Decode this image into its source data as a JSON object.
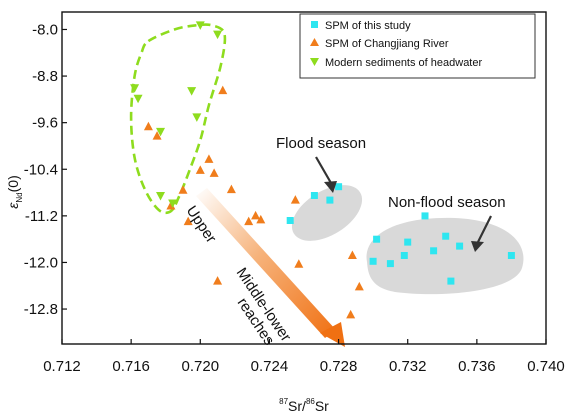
{
  "chart_data": {
    "type": "scatter",
    "xlim": [
      0.712,
      0.74
    ],
    "ylim": [
      -13.4,
      -7.7
    ],
    "x_ticks": [
      0.712,
      0.716,
      0.72,
      0.724,
      0.728,
      0.732,
      0.736,
      0.74
    ],
    "y_ticks": [
      -8.0,
      -8.8,
      -9.6,
      -10.4,
      -11.2,
      -12.0,
      -12.8
    ],
    "x_tick_labels": [
      "0.712",
      "0.716",
      "0.720",
      "0.724",
      "0.728",
      "0.732",
      "0.736",
      "0.740"
    ],
    "y_tick_labels": [
      "-8.0",
      "-8.8",
      "-9.6",
      "-10.4",
      "-11.2",
      "-12.0",
      "-12.8"
    ],
    "xlabel": {
      "sup1": "87",
      "base1": "Sr/",
      "sup2": "86",
      "base2": "Sr"
    },
    "ylabel": {
      "sym": "ε",
      "sub": "Nd",
      "rest": "(0)"
    },
    "legend_position": "top-right",
    "series": [
      {
        "name": "SPM of this study",
        "marker": "square",
        "color": "#2EE6F0",
        "points": [
          [
            0.7252,
            -11.28
          ],
          [
            0.7266,
            -10.85
          ],
          [
            0.7275,
            -10.93
          ],
          [
            0.728,
            -10.7
          ],
          [
            0.7302,
            -11.6
          ],
          [
            0.731,
            -12.02
          ],
          [
            0.7318,
            -11.88
          ],
          [
            0.732,
            -11.65
          ],
          [
            0.733,
            -11.2
          ],
          [
            0.7335,
            -11.8
          ],
          [
            0.7342,
            -11.55
          ],
          [
            0.7345,
            -12.32
          ],
          [
            0.735,
            -11.72
          ],
          [
            0.738,
            -11.88
          ],
          [
            0.73,
            -11.98
          ]
        ]
      },
      {
        "name": "SPM of Changjiang River",
        "marker": "triangle-up",
        "color": "#F07D1C",
        "points": [
          [
            0.717,
            -9.67
          ],
          [
            0.7175,
            -9.83
          ],
          [
            0.7183,
            -11.03
          ],
          [
            0.719,
            -10.76
          ],
          [
            0.7193,
            -11.3
          ],
          [
            0.72,
            -10.42
          ],
          [
            0.7205,
            -10.23
          ],
          [
            0.7208,
            -10.47
          ],
          [
            0.721,
            -12.32
          ],
          [
            0.7213,
            -9.05
          ],
          [
            0.7218,
            -10.75
          ],
          [
            0.7228,
            -11.3
          ],
          [
            0.7232,
            -11.2
          ],
          [
            0.7235,
            -11.27
          ],
          [
            0.7255,
            -10.93
          ],
          [
            0.7288,
            -11.88
          ],
          [
            0.7292,
            -12.42
          ],
          [
            0.7287,
            -12.9
          ],
          [
            0.7257,
            -12.03
          ]
        ]
      },
      {
        "name": "Modern sediments of headwater",
        "marker": "triangle-down",
        "color": "#8EDC1E",
        "points": [
          [
            0.7162,
            -9.0
          ],
          [
            0.7164,
            -9.18
          ],
          [
            0.7177,
            -9.75
          ],
          [
            0.7177,
            -10.85
          ],
          [
            0.7184,
            -10.98
          ],
          [
            0.7195,
            -9.05
          ],
          [
            0.7198,
            -9.5
          ],
          [
            0.72,
            -7.92
          ],
          [
            0.721,
            -8.08
          ]
        ]
      }
    ],
    "annotations": [
      {
        "text": "Flood season"
      },
      {
        "text": "Non-flood season"
      },
      {
        "text": "Upper"
      },
      {
        "text": "Middle-lower"
      },
      {
        "text": "reaches"
      }
    ],
    "headwater_outline": [
      [
        0.717,
        -8.2
      ],
      [
        0.7185,
        -8.0
      ],
      [
        0.7197,
        -7.93
      ],
      [
        0.7207,
        -7.93
      ],
      [
        0.7214,
        -8.08
      ],
      [
        0.7212,
        -8.6
      ],
      [
        0.7205,
        -9.3
      ],
      [
        0.72,
        -9.9
      ],
      [
        0.7194,
        -10.4
      ],
      [
        0.7188,
        -10.85
      ],
      [
        0.7183,
        -11.12
      ],
      [
        0.7176,
        -11.1
      ],
      [
        0.7168,
        -10.75
      ],
      [
        0.7162,
        -10.2
      ],
      [
        0.716,
        -9.5
      ],
      [
        0.7162,
        -8.8
      ],
      [
        0.7166,
        -8.4
      ]
    ]
  }
}
